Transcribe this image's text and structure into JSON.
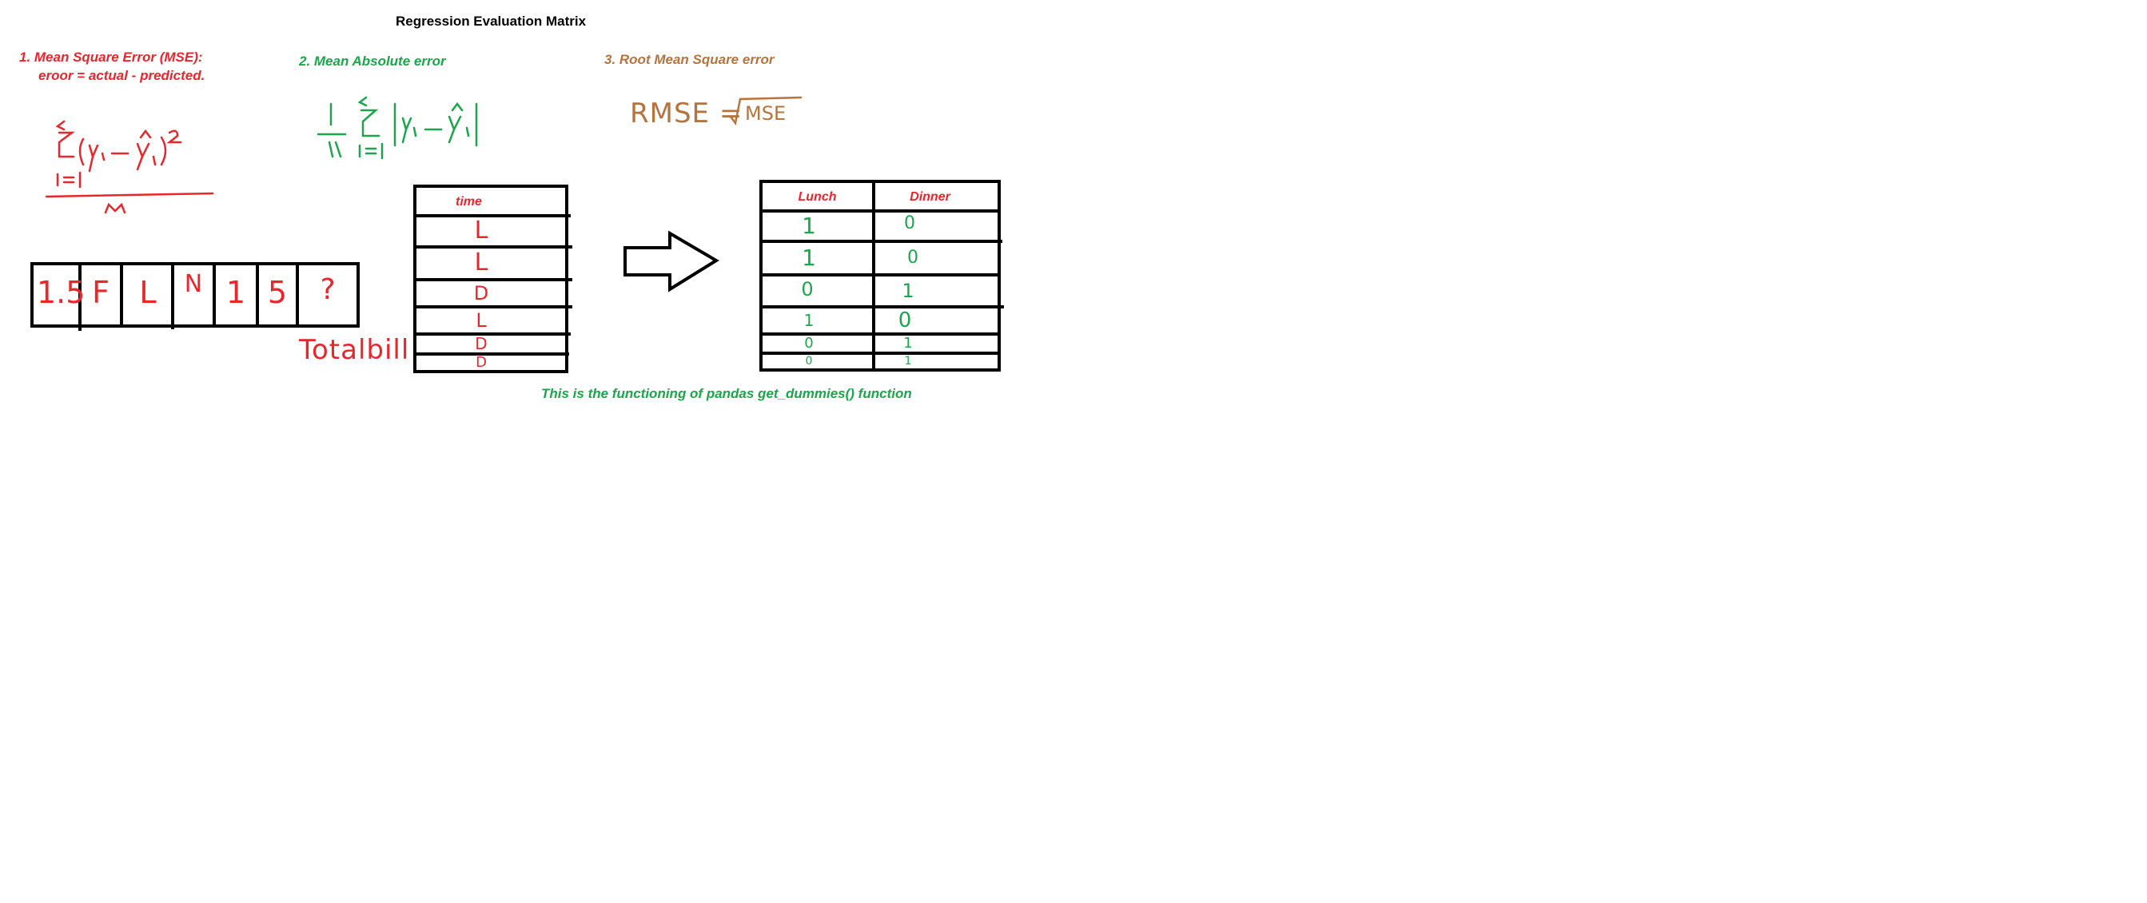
{
  "colors": {
    "red": "#e8262b",
    "green": "#1aa64a",
    "brown": "#b5743f",
    "black": "#000000"
  },
  "page_title": "Regression Evaluation Matrix",
  "sections": {
    "mse": {
      "title": "1. Mean Square Error (MSE):",
      "note": "eroor = actual - predicted."
    },
    "mae": {
      "title": "2. Mean Absolute error"
    },
    "rmse": {
      "title": "3. Root Mean Square error",
      "formula_lhs": "RMSE =",
      "formula_radicand": "MSE"
    }
  },
  "row_cells": [
    "1.5",
    "F",
    "L",
    "N",
    "1",
    "5",
    "?"
  ],
  "row_caption": "Totalbill",
  "time_table": {
    "header": "time",
    "rows": [
      "L",
      "L",
      "D",
      "L",
      "D",
      "D"
    ]
  },
  "dummies_table": {
    "headers": [
      "Lunch",
      "Dinner"
    ],
    "rows": [
      [
        "1",
        "0"
      ],
      [
        "1",
        "0"
      ],
      [
        "0",
        "1"
      ],
      [
        "1",
        "0"
      ],
      [
        "0",
        "1"
      ],
      [
        "0",
        "1"
      ]
    ]
  },
  "caption": "This is the functioning of pandas get_dummies() function"
}
